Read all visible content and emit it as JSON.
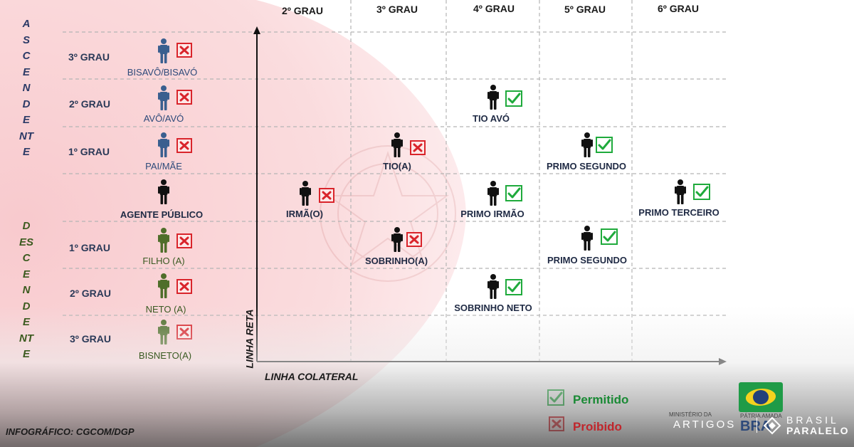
{
  "column_headers": [
    "2º GRAU",
    "3º GRAU",
    "4º GRAU",
    "5º GRAU",
    "6º GRAU"
  ],
  "ascendente_label": "ASCENDENTE",
  "descendente_label": "DESCENDENTE",
  "row_grades": {
    "asc3": "3º GRAU",
    "asc2": "2º GRAU",
    "asc1": "1º GRAU",
    "desc1": "1º GRAU",
    "desc2": "2º GRAU",
    "desc3": "3º GRAU"
  },
  "nodes": {
    "bisavo": "BISAVÔ/BISAVÓ",
    "avo": "AVÔ/AVÓ",
    "pai": "PAI/MÃE",
    "agente": "AGENTE PÚBLICO",
    "filho": "FILHO (A)",
    "neto": "NETO (A)",
    "bisneto": "BISNETO(A)",
    "irmao": "IRMÃ(O)",
    "tio": "TIO(A)",
    "sobrinho": "SOBRINHO(A)",
    "tio_avo": "TIO AVÓ",
    "primo_irmao": "PRIMO IRMÃO",
    "sobrinho_neto": "SOBRINHO NETO",
    "primo_segundo_top": "PRIMO SEGUNDO",
    "primo_segundo_bottom": "PRIMO SEGUNDO",
    "primo_terceiro": "PRIMO TERCEIRO"
  },
  "node_status": {
    "bisavo": "proibido",
    "avo": "proibido",
    "pai": "proibido",
    "filho": "proibido",
    "neto": "proibido",
    "bisneto": "proibido",
    "irmao": "proibido",
    "tio": "proibido",
    "sobrinho": "proibido",
    "tio_avo": "permitido",
    "primo_irmao": "permitido",
    "sobrinho_neto": "permitido",
    "primo_segundo_top": "permitido",
    "primo_segundo_bottom": "permitido",
    "primo_terceiro": "permitido"
  },
  "axes": {
    "vertical": "LINHA RETA",
    "horizontal": "LINHA COLATERAL"
  },
  "legend": {
    "permitido": "Permitido",
    "proibido": "Proibido"
  },
  "credit": "INFOGRÁFICO: CGCOM/DGP",
  "footer": {
    "ministry": "MINISTÉRIO DA",
    "patria": "PÁTRIA AMADA",
    "bras": "BRA",
    "artigos": "ARTIGOS",
    "brand_top": "BRASIL",
    "brand_bottom": "PARALELO"
  },
  "colors": {
    "permitido": "#1faa3c",
    "proibido": "#d9242b",
    "ascendente_figure": "#3a5f8f",
    "descendente_figure": "#4f6e2a",
    "neutral_figure": "#111111",
    "highlight": "#f8c9cc"
  },
  "icons": [
    "person-icon",
    "check-icon",
    "x-icon",
    "brasil-paralelo-logo-icon",
    "ministry-flag-logo"
  ]
}
